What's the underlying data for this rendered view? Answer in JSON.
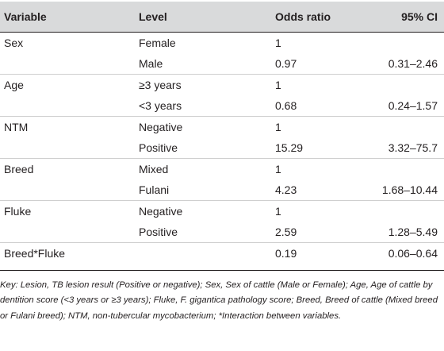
{
  "table": {
    "headers": [
      "Variable",
      "Level",
      "Odds ratio",
      "95% CI"
    ],
    "rows": [
      {
        "variable": "Sex",
        "level": "Female",
        "or": "1",
        "ci": ""
      },
      {
        "variable": "",
        "level": "Male",
        "or": "0.97",
        "ci": "0.31–2.46"
      },
      {
        "variable": "Age",
        "level": "≥3 years",
        "or": "1",
        "ci": ""
      },
      {
        "variable": "",
        "level": "<3 years",
        "or": "0.68",
        "ci": "0.24–1.57"
      },
      {
        "variable": "NTM",
        "level": "Negative",
        "or": "1",
        "ci": ""
      },
      {
        "variable": "",
        "level": "Positive",
        "or": "15.29",
        "ci": "3.32–75.7"
      },
      {
        "variable": "Breed",
        "level": "Mixed",
        "or": "1",
        "ci": ""
      },
      {
        "variable": "",
        "level": "Fulani",
        "or": "4.23",
        "ci": "1.68–10.44"
      },
      {
        "variable": "Fluke",
        "level": "Negative",
        "or": "1",
        "ci": ""
      },
      {
        "variable": "",
        "level": "Positive",
        "or": "2.59",
        "ci": "1.28–5.49"
      },
      {
        "variable": "Breed*Fluke",
        "level": "",
        "or": "0.19",
        "ci": "0.06–0.64"
      }
    ]
  },
  "footnote": "Key: Lesion, TB lesion result (Positive or negative); Sex, Sex of cattle (Male or Female); Age, Age of cattle by dentition score (<3 years or ≥3 years); Fluke, F. gigantica pathology score; Breed, Breed of cattle (Mixed breed or Fulani breed); NTM, non-tubercular mycobacterium; *Interaction between variables."
}
